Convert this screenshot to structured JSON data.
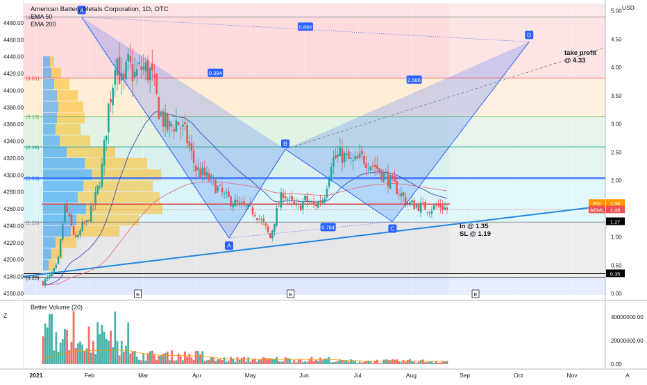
{
  "chart_data": {
    "type": "candlestick",
    "title": "American Battery Metals Corporation, 1D, OTC",
    "indicators": [
      "EMA 50",
      "EMA 200"
    ],
    "currency": "USD",
    "price_axis": {
      "ylim": [
        0.0,
        5.0
      ],
      "ticks": [
        "5.00",
        "4.50",
        "4.00",
        "3.50",
        "3.00",
        "2.50",
        "2.00",
        "1.50",
        "1.00",
        "0.50",
        "0.00"
      ]
    },
    "left_axis": {
      "ylim": [
        4160,
        4480
      ],
      "ticks": [
        "4480.00",
        "4460.00",
        "4440.00",
        "4420.00",
        "4400.00",
        "4380.00",
        "4360.00",
        "4340.00",
        "4320.00",
        "4300.00",
        "4280.00",
        "4260.00",
        "4240.00",
        "4220.00",
        "4200.00",
        "4180.00",
        "4160.00"
      ]
    },
    "x_axis": {
      "ticks": [
        "2021",
        "Feb",
        "Mar",
        "Apr",
        "May",
        "Jun",
        "Jul",
        "Aug",
        "Sep",
        "Oct",
        "Nov",
        "A"
      ]
    },
    "fib_levels": [
      {
        "label": "(4.89)",
        "value": 4.89
      },
      {
        "label": "(3.81)",
        "value": 3.81
      },
      {
        "label": "(3.13)",
        "value": 3.13
      },
      {
        "label": "(2.59)",
        "value": 2.59
      },
      {
        "label": "(2.04)",
        "value": 2.04
      },
      {
        "label": "(1.26)",
        "value": 1.26
      },
      {
        "label": "(0.28)",
        "value": 0.28
      }
    ],
    "harmonic_pattern": {
      "points": [
        {
          "label": "X",
          "month": 0.85,
          "price": 4.89
        },
        {
          "label": "A",
          "month": 3.6,
          "price": 0.98
        },
        {
          "label": "B",
          "month": 4.65,
          "price": 2.55
        },
        {
          "label": "C",
          "month": 6.65,
          "price": 1.27
        },
        {
          "label": "D",
          "month": 9.2,
          "price": 4.45
        }
      ],
      "ratios": [
        "0.884",
        "0.394",
        "2.586",
        "0.784"
      ]
    },
    "annotations": [
      "take profit",
      "@ 4.33",
      "In @ 1.35",
      "SL @ 1.19"
    ],
    "earnings_markers": [
      "E",
      "E",
      "E"
    ],
    "price_labels": [
      {
        "text": "Pre",
        "value": "1.50",
        "color": "#ff9800"
      },
      {
        "text": "ABML",
        "value": "1.48",
        "color": "#ef5350"
      },
      {
        "text": "",
        "value": "1.27",
        "color": "#000000"
      },
      {
        "text": "",
        "value": "0.35",
        "color": "#000000"
      }
    ],
    "volume_panel": {
      "title": "Better Volume (20)",
      "ticks": [
        "40000000.00",
        "20000000.00",
        "0.00"
      ],
      "ylim": [
        0,
        46000000
      ]
    }
  },
  "colors": {
    "up": "#26a69a",
    "down": "#ef5350",
    "pattern": "#2962ff"
  }
}
